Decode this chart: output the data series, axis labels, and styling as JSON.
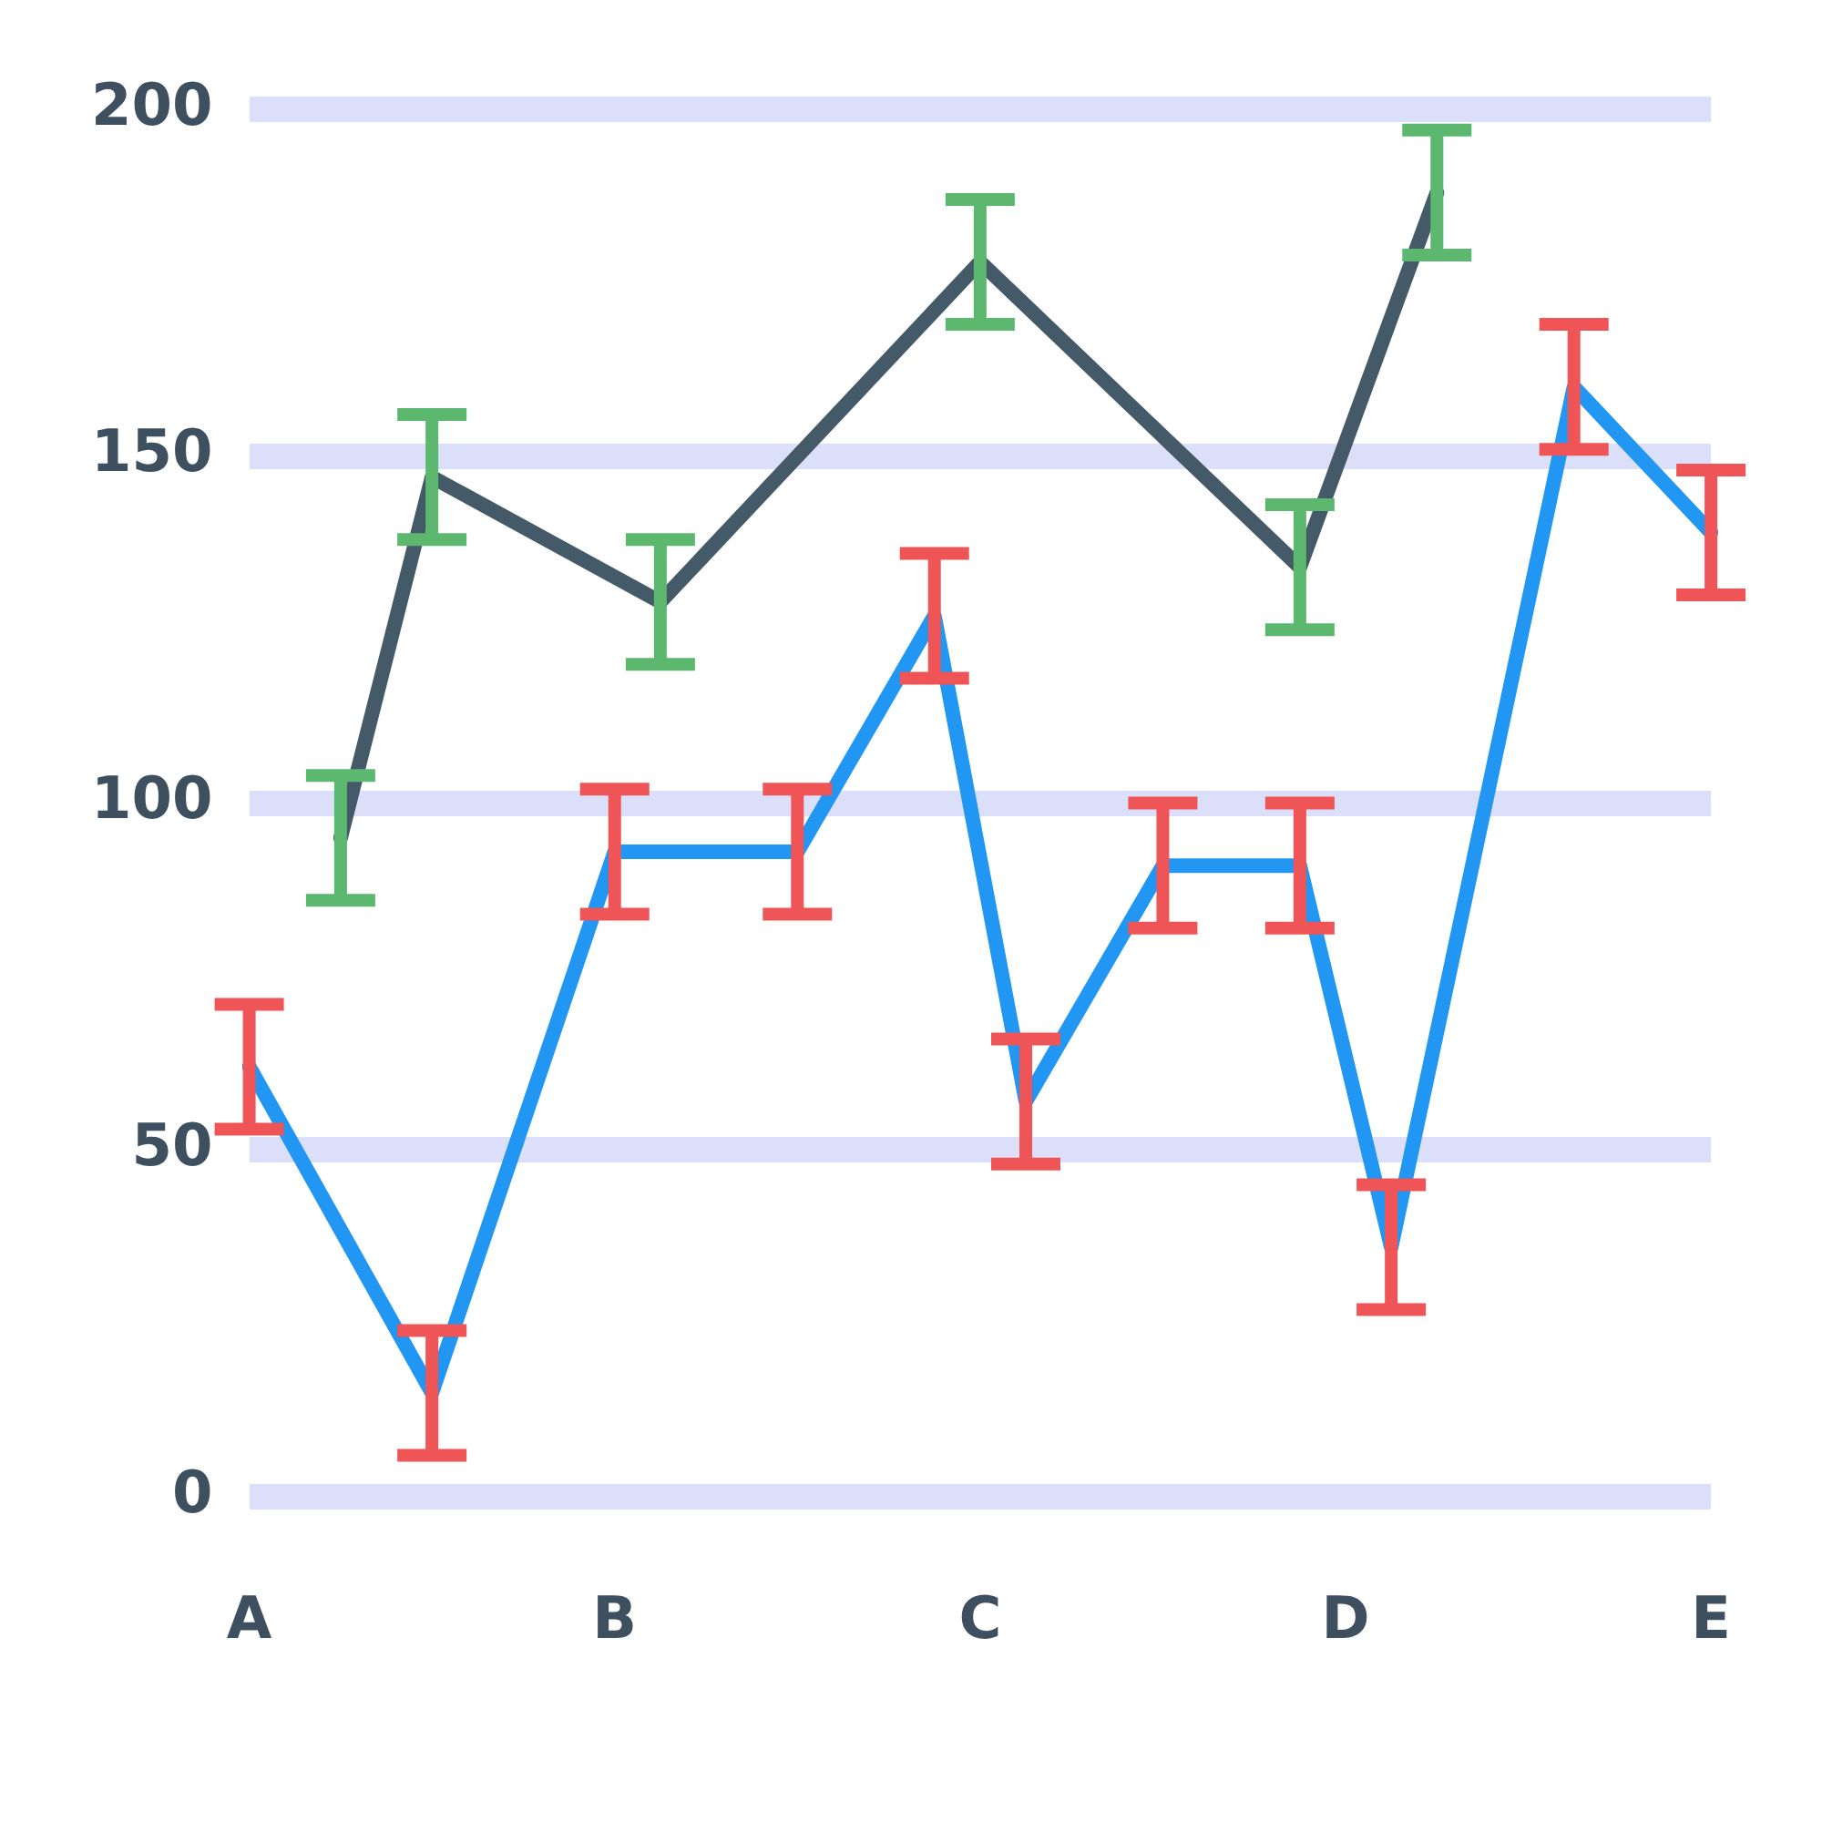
{
  "chart_data": {
    "type": "line",
    "categories": [
      "A",
      null,
      null,
      null,
      null,
      null,
      null,
      null,
      "B",
      null,
      null,
      null,
      null,
      null,
      null,
      null,
      "C",
      null,
      null,
      null,
      null,
      null,
      null,
      null,
      "D",
      null,
      null,
      null,
      null,
      null,
      null,
      null,
      "E"
    ],
    "ylim": [
      0,
      200
    ],
    "yticks": [
      0,
      50,
      100,
      150,
      200
    ],
    "grid": "y",
    "marker": "none",
    "line_style": "solid",
    "series": [
      {
        "color": "#2196f3",
        "values": [
          62,
          null,
          null,
          null,
          15,
          null,
          null,
          null,
          93,
          null,
          null,
          null,
          93,
          null,
          null,
          127,
          null,
          57,
          null,
          null,
          91,
          null,
          null,
          91,
          null,
          36,
          null,
          null,
          null,
          160,
          null,
          null,
          139
        ],
        "errors": [
          9,
          null,
          null,
          null,
          9,
          null,
          null,
          null,
          9,
          null,
          null,
          null,
          9,
          null,
          null,
          9,
          null,
          9,
          null,
          null,
          9,
          null,
          null,
          9,
          null,
          9,
          null,
          null,
          null,
          9,
          null,
          null,
          9
        ],
        "colors": [
          "#ef5457",
          null,
          null,
          null,
          "#ef5457",
          null,
          null,
          null,
          "#ef5457",
          null,
          null,
          null,
          "#ef5457",
          null,
          null,
          "#ef5457",
          null,
          "#ef5457",
          null,
          null,
          "#ef5457",
          null,
          null,
          "#ef5457",
          null,
          "#ef5457",
          null,
          null,
          null,
          "#ef5457",
          null,
          null,
          "#ef5457"
        ]
      },
      {
        "color": "#455a68",
        "values": [
          null,
          null,
          95,
          null,
          147,
          null,
          null,
          null,
          null,
          129,
          null,
          null,
          null,
          null,
          null,
          null,
          178,
          null,
          null,
          null,
          null,
          null,
          null,
          134,
          null,
          null,
          188,
          null,
          null,
          null,
          null,
          null,
          null
        ],
        "errors": [
          null,
          null,
          9,
          null,
          9,
          null,
          null,
          null,
          null,
          9,
          null,
          null,
          null,
          null,
          null,
          null,
          9,
          null,
          null,
          null,
          null,
          null,
          null,
          9,
          null,
          null,
          9,
          null,
          null,
          null,
          null,
          null,
          null
        ],
        "colors": [
          null,
          null,
          "#5cb86e",
          null,
          "#5cb86e",
          null,
          null,
          null,
          null,
          "#5cb86e",
          null,
          null,
          null,
          null,
          null,
          null,
          "#5cb86e",
          null,
          null,
          null,
          null,
          null,
          null,
          "#5cb86e",
          null,
          null,
          "#5cb86e",
          null,
          null,
          null,
          null,
          null,
          null
        ]
      }
    ]
  }
}
